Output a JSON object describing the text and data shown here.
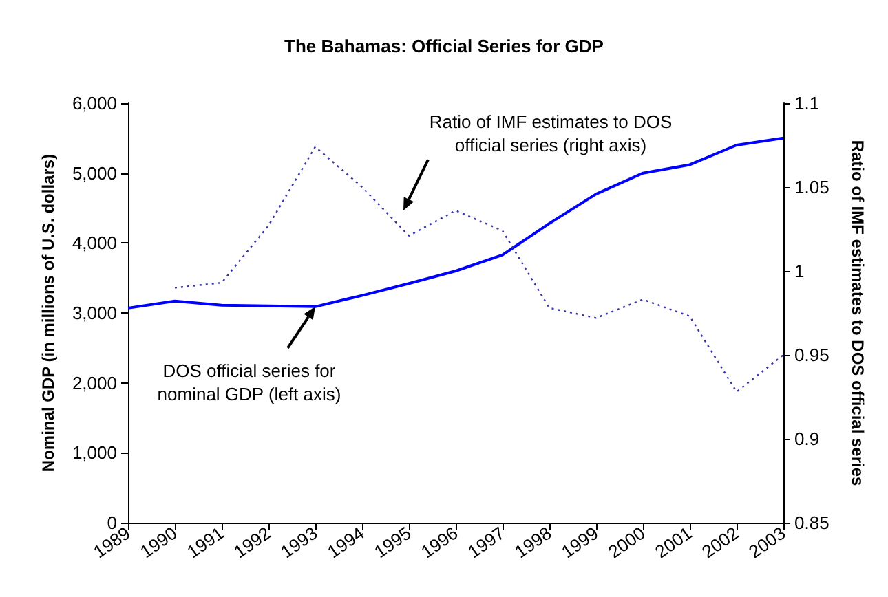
{
  "chart_data": {
    "type": "line",
    "title": "The Bahamas: Official Series for GDP",
    "ylabel": "Nominal GDP (in millions of U.S. dollars)",
    "y2label": "Ratio of IMF estimates to DOS official series",
    "categories": [
      "1989",
      "1990",
      "1991",
      "1992",
      "1993",
      "1994",
      "1995",
      "1996",
      "1997",
      "1998",
      "1999",
      "2000",
      "2001",
      "2002",
      "2003"
    ],
    "series": [
      {
        "color": "#0000ff",
        "line_style": "solid",
        "values": [
          3070,
          3170,
          3110,
          3100,
          3090,
          3250,
          3420,
          3600,
          3830,
          4280,
          4700,
          5000,
          5120,
          5400,
          5500
        ]
      },
      {
        "color": "#3333aa",
        "line_style": "dotted",
        "axis": "y2",
        "values": [
          null,
          0.99,
          0.993,
          1.027,
          1.074,
          1.05,
          1.021,
          1.036,
          1.024,
          0.978,
          0.972,
          0.983,
          0.973,
          0.928,
          0.95
        ]
      }
    ],
    "ylim": [
      0,
      6000
    ],
    "yticks": [
      {
        "value": 0,
        "label": "0"
      },
      {
        "value": 1000,
        "label": "1,000"
      },
      {
        "value": 2000,
        "label": "2,000"
      },
      {
        "value": 3000,
        "label": "3,000"
      },
      {
        "value": 4000,
        "label": "4,000"
      },
      {
        "value": 5000,
        "label": "5,000"
      },
      {
        "value": 6000,
        "label": "6,000"
      }
    ],
    "y2lim": [
      0.85,
      1.1
    ],
    "y2ticks": [
      0.85,
      0.9,
      0.95,
      1,
      1.05,
      1.1
    ],
    "annotations": [
      "Ratio of IMF estimates to DOS\nofficial series (right axis)",
      {
        "text": "DOS official series for\nnominal GDP (left axis)",
        "x": "1993",
        "y": 3090
      }
    ],
    "grid": false,
    "marker": "none"
  }
}
